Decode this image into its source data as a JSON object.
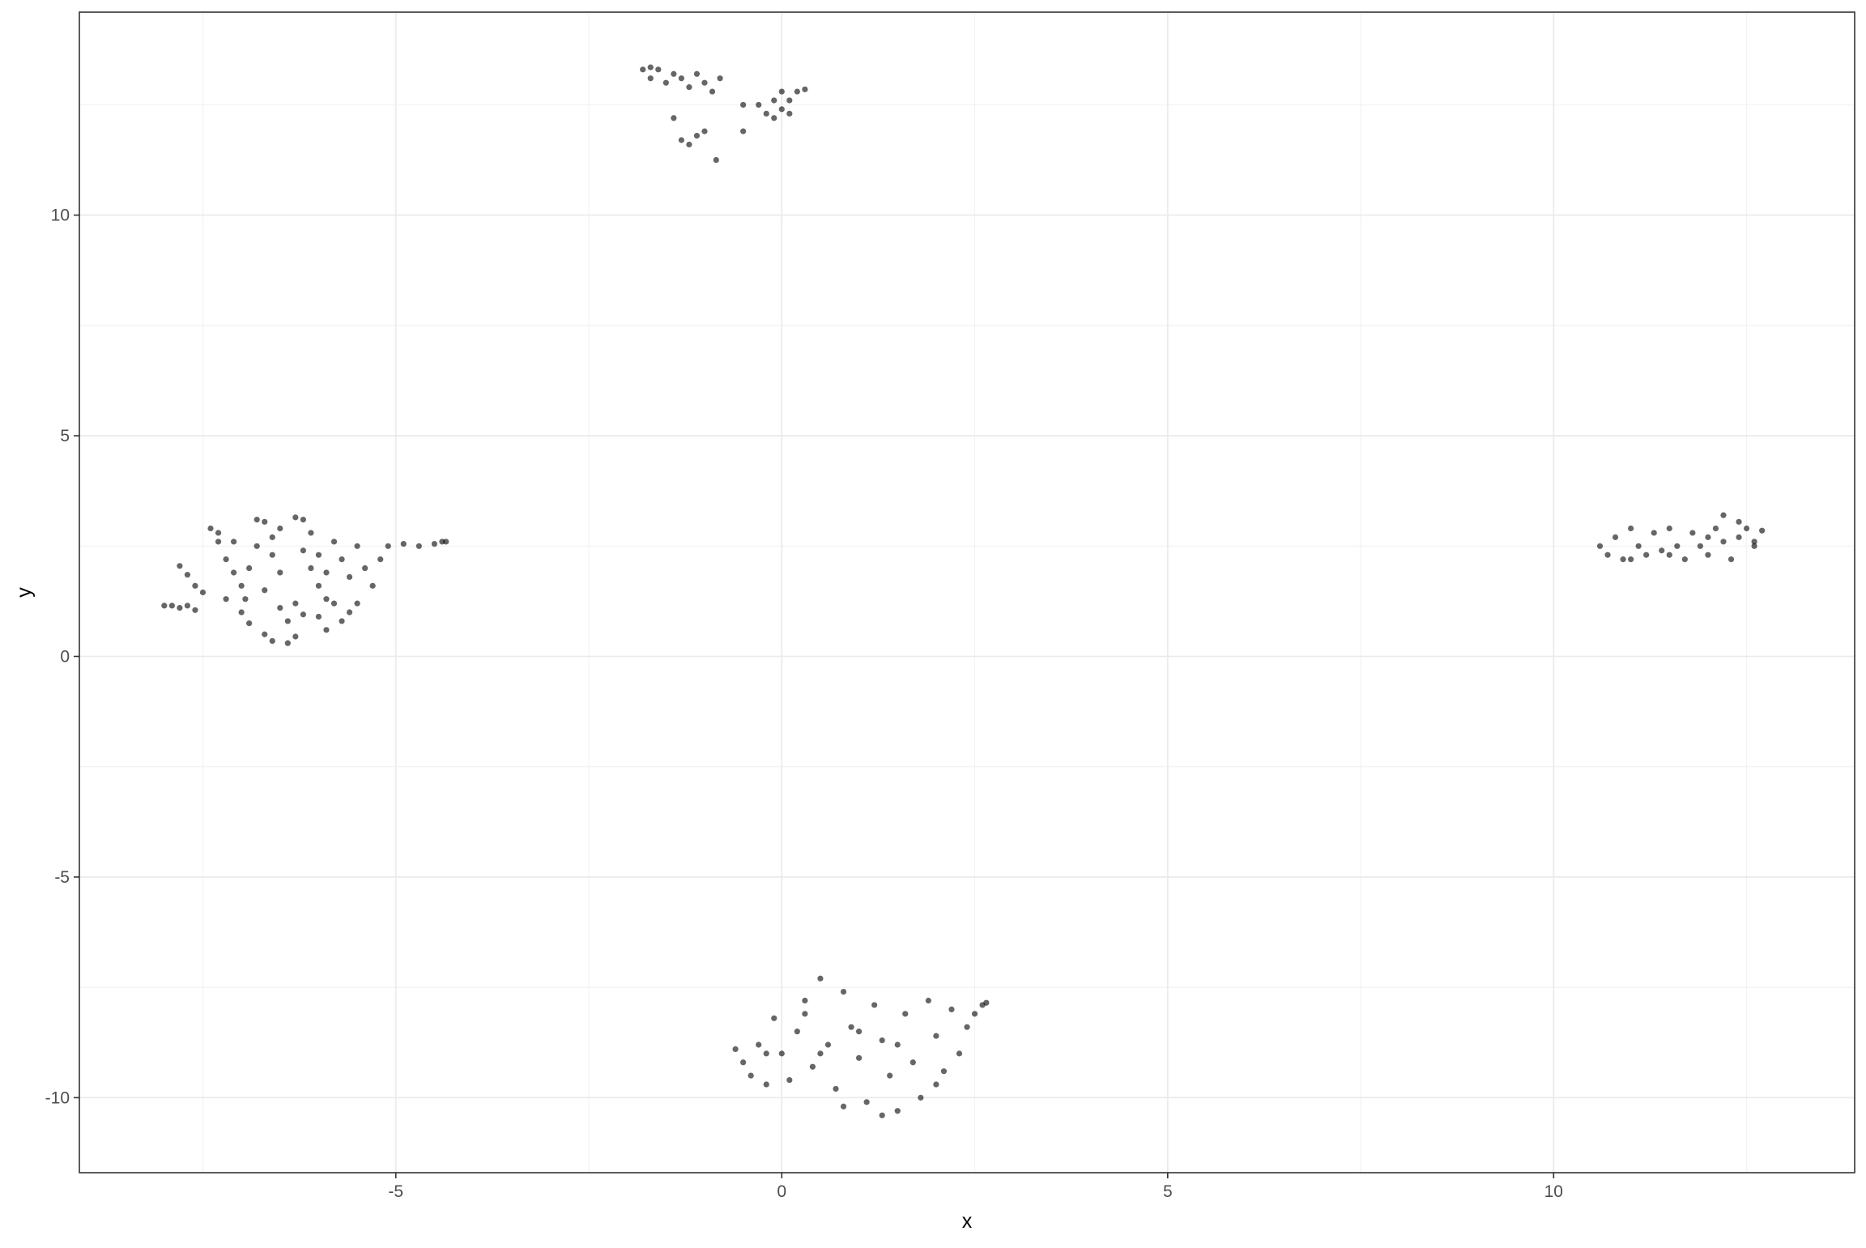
{
  "chart_data": {
    "type": "scatter",
    "title": "",
    "xlabel": "x",
    "ylabel": "y",
    "xlim": [
      -9.1,
      13.9
    ],
    "ylim": [
      -11.7,
      14.6
    ],
    "x_ticks": [
      -5,
      0,
      5,
      10
    ],
    "y_ticks": [
      -10,
      -5,
      0,
      5,
      10
    ],
    "x_tick_labels": [
      "-5",
      "0",
      "5",
      "10"
    ],
    "y_tick_labels": [
      "-10",
      "-5",
      "0",
      "5",
      "10"
    ],
    "grid": true,
    "legend": "none",
    "point_color": "#000000",
    "point_alpha": 0.6,
    "series": [
      {
        "values": [
          [
            -8.0,
            1.15
          ],
          [
            -7.9,
            1.15
          ],
          [
            -7.8,
            1.1
          ],
          [
            -7.7,
            1.15
          ],
          [
            -7.6,
            1.05
          ],
          [
            -7.8,
            2.05
          ],
          [
            -7.7,
            1.85
          ],
          [
            -7.6,
            1.6
          ],
          [
            -7.5,
            1.45
          ],
          [
            -7.4,
            2.9
          ],
          [
            -7.3,
            2.8
          ],
          [
            -7.3,
            2.6
          ],
          [
            -7.2,
            2.2
          ],
          [
            -7.1,
            1.9
          ],
          [
            -7.0,
            1.6
          ],
          [
            -7.2,
            1.3
          ],
          [
            -7.0,
            1.0
          ],
          [
            -6.9,
            0.75
          ],
          [
            -6.8,
            2.5
          ],
          [
            -6.8,
            3.1
          ],
          [
            -6.7,
            3.05
          ],
          [
            -6.6,
            2.7
          ],
          [
            -6.6,
            2.3
          ],
          [
            -6.5,
            1.9
          ],
          [
            -6.7,
            1.5
          ],
          [
            -6.5,
            1.1
          ],
          [
            -6.7,
            0.5
          ],
          [
            -6.6,
            0.35
          ],
          [
            -6.4,
            0.3
          ],
          [
            -6.3,
            0.45
          ],
          [
            -6.4,
            0.8
          ],
          [
            -6.3,
            3.15
          ],
          [
            -6.2,
            3.1
          ],
          [
            -6.1,
            2.8
          ],
          [
            -6.2,
            2.4
          ],
          [
            -6.1,
            2.0
          ],
          [
            -6.0,
            1.6
          ],
          [
            -5.9,
            1.3
          ],
          [
            -6.0,
            0.9
          ],
          [
            -5.9,
            0.6
          ],
          [
            -6.3,
            1.2
          ],
          [
            -6.2,
            0.95
          ],
          [
            -5.8,
            2.6
          ],
          [
            -5.7,
            2.2
          ],
          [
            -5.6,
            1.8
          ],
          [
            -5.8,
            1.2
          ],
          [
            -5.7,
            0.8
          ],
          [
            -5.5,
            1.2
          ],
          [
            -5.5,
            2.5
          ],
          [
            -5.4,
            2.0
          ],
          [
            -5.3,
            1.6
          ],
          [
            -5.6,
            1.0
          ],
          [
            -5.2,
            2.2
          ],
          [
            -5.1,
            2.5
          ],
          [
            -4.9,
            2.55
          ],
          [
            -4.7,
            2.5
          ],
          [
            -4.5,
            2.55
          ],
          [
            -4.4,
            2.6
          ],
          [
            -4.35,
            2.6
          ],
          [
            -6.9,
            2.0
          ],
          [
            -6.5,
            2.9
          ],
          [
            -6.0,
            2.3
          ],
          [
            -5.9,
            1.9
          ],
          [
            -7.1,
            2.6
          ],
          [
            -6.95,
            1.3
          ]
        ]
      },
      {
        "values": [
          [
            -1.8,
            13.3
          ],
          [
            -1.7,
            13.35
          ],
          [
            -1.6,
            13.3
          ],
          [
            -1.7,
            13.1
          ],
          [
            -1.5,
            13.0
          ],
          [
            -1.4,
            13.2
          ],
          [
            -1.3,
            13.1
          ],
          [
            -1.2,
            12.9
          ],
          [
            -1.1,
            13.2
          ],
          [
            -1.0,
            13.0
          ],
          [
            -0.8,
            13.1
          ],
          [
            -0.9,
            12.8
          ],
          [
            -1.3,
            11.7
          ],
          [
            -1.2,
            11.6
          ],
          [
            -1.1,
            11.8
          ],
          [
            -1.4,
            12.2
          ],
          [
            -0.85,
            11.25
          ],
          [
            -0.5,
            11.9
          ],
          [
            -0.5,
            12.5
          ],
          [
            -0.3,
            12.5
          ],
          [
            -0.1,
            12.2
          ],
          [
            0.0,
            12.4
          ],
          [
            0.1,
            12.3
          ],
          [
            0.0,
            12.8
          ],
          [
            0.1,
            12.6
          ],
          [
            0.2,
            12.8
          ],
          [
            0.3,
            12.85
          ],
          [
            -0.1,
            12.6
          ],
          [
            -0.2,
            12.3
          ],
          [
            -1.0,
            11.9
          ]
        ]
      },
      {
        "values": [
          [
            10.6,
            2.5
          ],
          [
            10.7,
            2.3
          ],
          [
            10.8,
            2.7
          ],
          [
            10.9,
            2.2
          ],
          [
            11.0,
            2.9
          ],
          [
            11.1,
            2.5
          ],
          [
            11.2,
            2.3
          ],
          [
            11.3,
            2.8
          ],
          [
            11.4,
            2.4
          ],
          [
            11.5,
            2.9
          ],
          [
            11.6,
            2.5
          ],
          [
            11.7,
            2.2
          ],
          [
            11.8,
            2.8
          ],
          [
            11.9,
            2.5
          ],
          [
            12.0,
            2.3
          ],
          [
            12.1,
            2.9
          ],
          [
            12.2,
            2.6
          ],
          [
            12.3,
            2.2
          ],
          [
            12.4,
            2.7
          ],
          [
            12.5,
            2.9
          ],
          [
            12.6,
            2.6
          ],
          [
            12.7,
            2.85
          ],
          [
            12.2,
            3.2
          ],
          [
            12.4,
            3.05
          ],
          [
            11.0,
            2.2
          ],
          [
            11.5,
            2.3
          ],
          [
            12.0,
            2.7
          ],
          [
            12.6,
            2.5
          ]
        ]
      },
      {
        "values": [
          [
            -0.6,
            -8.9
          ],
          [
            -0.5,
            -9.2
          ],
          [
            -0.4,
            -9.5
          ],
          [
            -0.3,
            -8.8
          ],
          [
            -0.2,
            -9.7
          ],
          [
            -0.1,
            -8.2
          ],
          [
            0.0,
            -9.0
          ],
          [
            0.1,
            -9.6
          ],
          [
            0.2,
            -8.5
          ],
          [
            0.3,
            -7.8
          ],
          [
            0.4,
            -9.3
          ],
          [
            0.5,
            -7.3
          ],
          [
            0.6,
            -8.8
          ],
          [
            0.7,
            -9.8
          ],
          [
            0.8,
            -7.6
          ],
          [
            0.9,
            -8.4
          ],
          [
            1.0,
            -9.1
          ],
          [
            1.1,
            -10.1
          ],
          [
            1.2,
            -7.9
          ],
          [
            1.3,
            -8.7
          ],
          [
            1.4,
            -9.5
          ],
          [
            1.5,
            -10.3
          ],
          [
            1.6,
            -8.1
          ],
          [
            1.7,
            -9.2
          ],
          [
            1.8,
            -10.0
          ],
          [
            1.9,
            -7.8
          ],
          [
            2.0,
            -8.6
          ],
          [
            2.1,
            -9.4
          ],
          [
            2.2,
            -8.0
          ],
          [
            2.3,
            -9.0
          ],
          [
            2.4,
            -8.4
          ],
          [
            2.5,
            -8.1
          ],
          [
            2.6,
            -7.9
          ],
          [
            2.65,
            -7.85
          ],
          [
            1.0,
            -8.5
          ],
          [
            0.5,
            -9.0
          ],
          [
            1.5,
            -8.8
          ],
          [
            0.8,
            -10.2
          ],
          [
            1.3,
            -10.4
          ],
          [
            2.0,
            -9.7
          ],
          [
            -0.2,
            -9.0
          ],
          [
            0.3,
            -8.1
          ]
        ]
      }
    ]
  }
}
